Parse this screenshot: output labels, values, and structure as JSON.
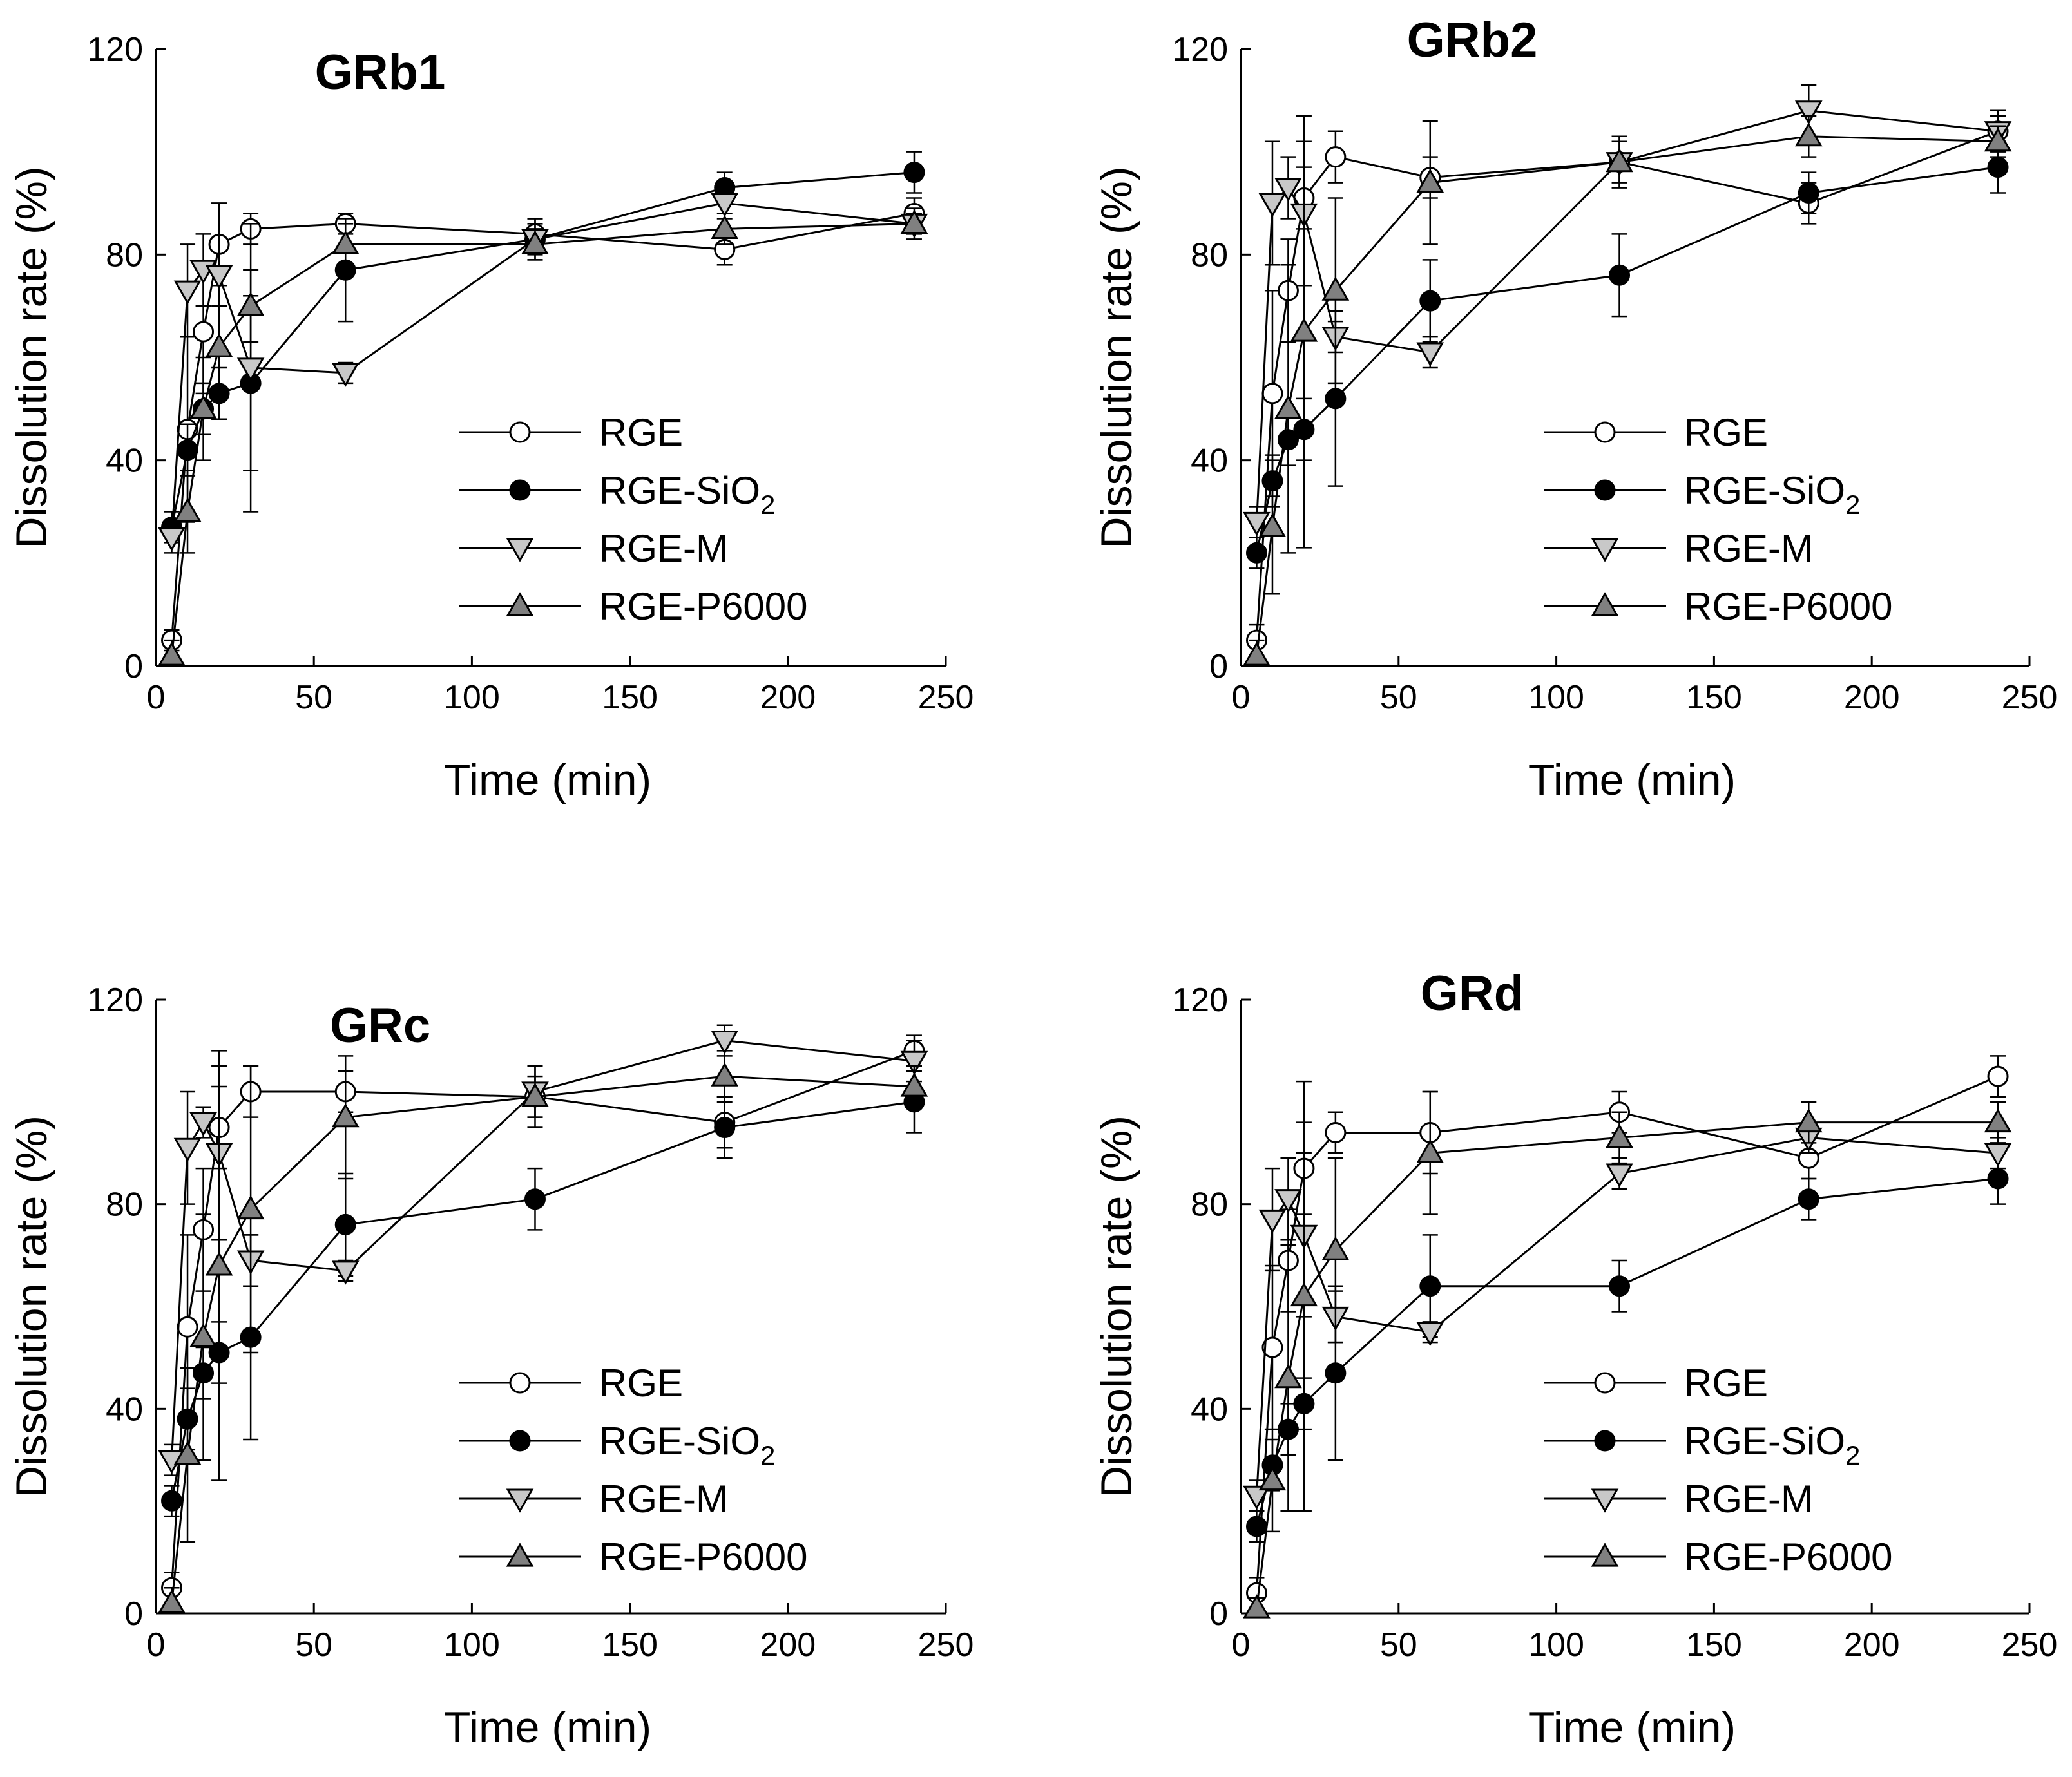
{
  "chart_data": [
    {
      "type": "line",
      "title": "GRb1",
      "xlabel": "Time (min)",
      "ylabel": "Dissolution rate (%)",
      "xlim": [
        0,
        250
      ],
      "ylim": [
        0,
        120
      ],
      "xticks": [
        0,
        50,
        100,
        150,
        200,
        250
      ],
      "yticks": [
        0,
        40,
        80,
        120
      ],
      "x": [
        5,
        10,
        15,
        20,
        30,
        60,
        120,
        180,
        240
      ],
      "series": [
        {
          "name": "RGE",
          "values": [
            5,
            46,
            65,
            82,
            85,
            86,
            84,
            81,
            88
          ],
          "errors": [
            2,
            18,
            12,
            8,
            3,
            2,
            3,
            3,
            3
          ]
        },
        {
          "name": "RGE-SiO2",
          "values": [
            27,
            42,
            50,
            53,
            55,
            77,
            83,
            93,
            96
          ],
          "errors": [
            3,
            5,
            5,
            5,
            17,
            10,
            4,
            3,
            4
          ]
        },
        {
          "name": "RGE-M",
          "values": [
            25,
            73,
            77,
            76,
            58,
            57,
            83,
            90,
            86
          ],
          "errors": [
            3,
            9,
            7,
            14,
            28,
            2,
            3,
            3,
            3
          ]
        },
        {
          "name": "RGE-P6000",
          "values": [
            2,
            30,
            50,
            62,
            70,
            82,
            82,
            85,
            86
          ],
          "errors": [
            3,
            8,
            10,
            8,
            7,
            4,
            3,
            3,
            2
          ]
        }
      ]
    },
    {
      "type": "line",
      "title": "GRb2",
      "xlabel": "Time (min)",
      "ylabel": "Dissolution rate (%)",
      "xlim": [
        0,
        250
      ],
      "ylim": [
        0,
        120
      ],
      "xticks": [
        0,
        50,
        100,
        150,
        200,
        250
      ],
      "yticks": [
        0,
        40,
        80,
        120
      ],
      "x": [
        5,
        10,
        15,
        20,
        30,
        60,
        120,
        180,
        240
      ],
      "series": [
        {
          "name": "RGE",
          "values": [
            5,
            53,
            73,
            91,
            99,
            95,
            98,
            90,
            104
          ],
          "errors": [
            3,
            20,
            10,
            6,
            5,
            4,
            5,
            4,
            3
          ]
        },
        {
          "name": "RGE-SiO2",
          "values": [
            22,
            36,
            44,
            46,
            52,
            71,
            76,
            92,
            97
          ],
          "errors": [
            3,
            5,
            5,
            6,
            17,
            8,
            8,
            4,
            5
          ]
        },
        {
          "name": "RGE-M",
          "values": [
            28,
            90,
            93,
            88,
            64,
            61,
            98,
            108,
            104
          ],
          "errors": [
            3,
            12,
            6,
            14,
            3,
            3,
            4,
            5,
            4
          ]
        },
        {
          "name": "RGE-P6000",
          "values": [
            2,
            27,
            50,
            65,
            73,
            94,
            98,
            103,
            102
          ],
          "errors": [
            3,
            13,
            28,
            42,
            18,
            12,
            5,
            4,
            3
          ]
        }
      ]
    },
    {
      "type": "line",
      "title": "GRc",
      "xlabel": "Time (min)",
      "ylabel": "Dissolution rate (%)",
      "xlim": [
        0,
        250
      ],
      "ylim": [
        0,
        120
      ],
      "xticks": [
        0,
        50,
        100,
        150,
        200,
        250
      ],
      "yticks": [
        0,
        40,
        80,
        120
      ],
      "x": [
        5,
        10,
        15,
        20,
        30,
        60,
        120,
        180,
        240
      ],
      "series": [
        {
          "name": "RGE",
          "values": [
            5,
            56,
            75,
            95,
            102,
            102,
            101,
            96,
            110
          ],
          "errors": [
            3,
            18,
            12,
            8,
            5,
            4,
            4,
            5,
            3
          ]
        },
        {
          "name": "RGE-SiO2",
          "values": [
            22,
            38,
            47,
            51,
            54,
            76,
            81,
            95,
            100
          ],
          "errors": [
            3,
            6,
            5,
            6,
            20,
            10,
            6,
            6,
            6
          ]
        },
        {
          "name": "RGE-M",
          "values": [
            30,
            91,
            96,
            90,
            69,
            67,
            102,
            112,
            108
          ],
          "errors": [
            3,
            11,
            3,
            17,
            5,
            2,
            5,
            3,
            4
          ]
        },
        {
          "name": "RGE-P6000",
          "values": [
            2,
            31,
            54,
            68,
            79,
            97,
            101,
            105,
            103
          ],
          "errors": [
            3,
            17,
            24,
            42,
            28,
            12,
            6,
            5,
            4
          ]
        }
      ]
    },
    {
      "type": "line",
      "title": "GRd",
      "xlabel": "Time (min)",
      "ylabel": "Dissolution rate (%)",
      "xlim": [
        0,
        250
      ],
      "ylim": [
        0,
        120
      ],
      "xticks": [
        0,
        50,
        100,
        150,
        200,
        250
      ],
      "yticks": [
        0,
        40,
        80,
        120
      ],
      "x": [
        5,
        10,
        15,
        20,
        30,
        60,
        120,
        180,
        240
      ],
      "series": [
        {
          "name": "RGE",
          "values": [
            4,
            52,
            69,
            87,
            94,
            94,
            98,
            89,
            105
          ],
          "errors": [
            3,
            16,
            10,
            9,
            4,
            8,
            4,
            4,
            4
          ]
        },
        {
          "name": "RGE-SiO2",
          "values": [
            17,
            29,
            36,
            41,
            47,
            64,
            64,
            81,
            85
          ],
          "errors": [
            3,
            5,
            5,
            5,
            17,
            10,
            5,
            4,
            5
          ]
        },
        {
          "name": "RGE-M",
          "values": [
            23,
            77,
            81,
            74,
            58,
            55,
            86,
            93,
            90
          ],
          "errors": [
            3,
            10,
            8,
            16,
            5,
            2,
            3,
            3,
            3
          ]
        },
        {
          "name": "RGE-P6000",
          "values": [
            1,
            26,
            46,
            62,
            71,
            90,
            93,
            96,
            96
          ],
          "errors": [
            2,
            10,
            26,
            42,
            18,
            12,
            5,
            4,
            4
          ]
        }
      ]
    }
  ],
  "legend": {
    "entries": [
      {
        "id": "RGE",
        "label": "RGE",
        "marker": "circle",
        "fill": "#ffffff"
      },
      {
        "id": "RGE-SiO2",
        "label": "RGE-SiO",
        "sub": "2",
        "marker": "circle",
        "fill": "#000000"
      },
      {
        "id": "RGE-M",
        "label": "RGE-M",
        "marker": "triangle-down",
        "fill": "#c8c8c8"
      },
      {
        "id": "RGE-P6000",
        "label": "RGE-P6000",
        "marker": "triangle-up",
        "fill": "#808080"
      }
    ]
  }
}
